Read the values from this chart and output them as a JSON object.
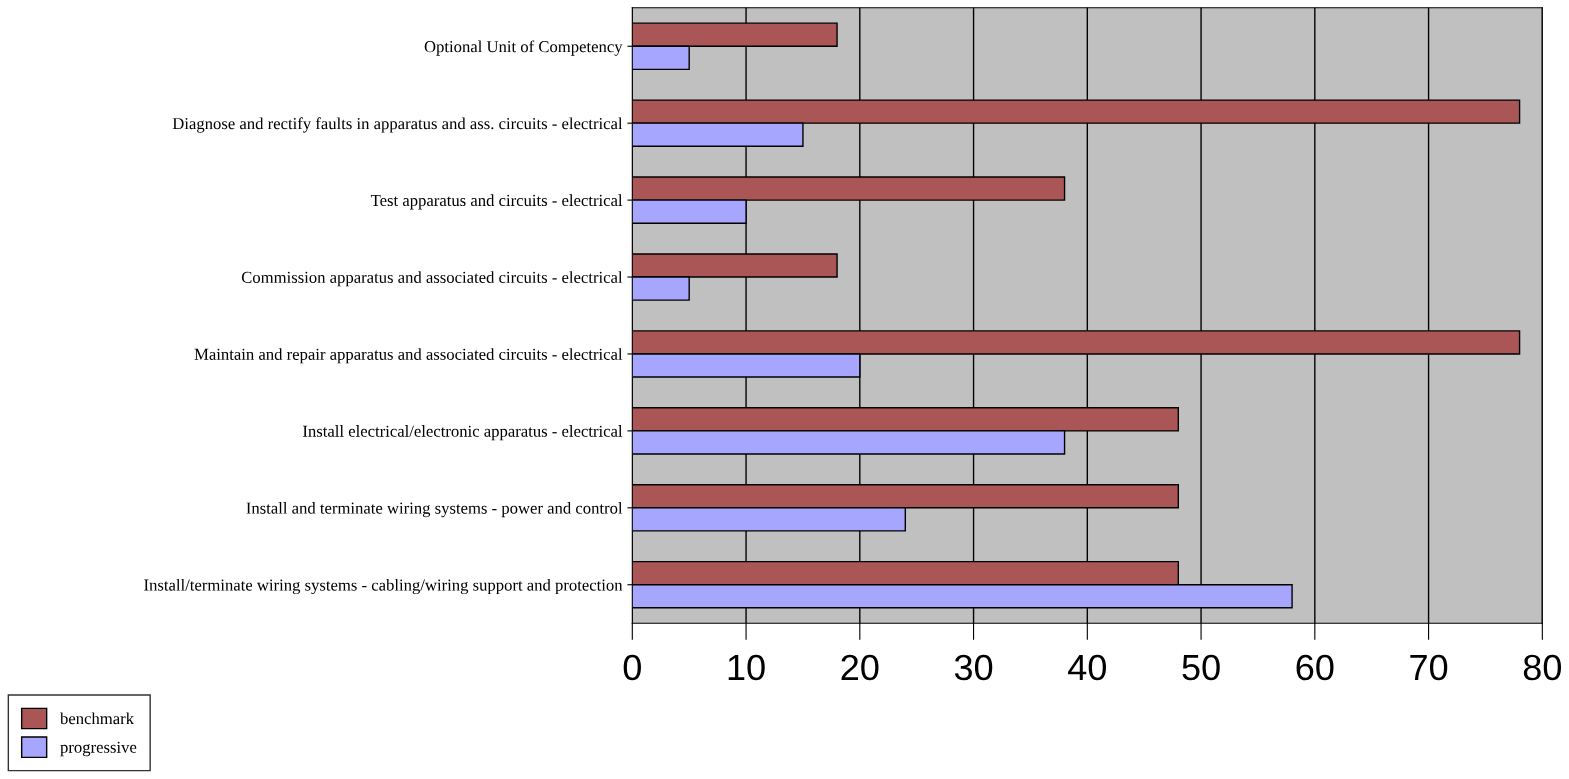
{
  "chart_data": {
    "type": "bar",
    "orientation": "horizontal",
    "categories": [
      "Optional Unit of Competency",
      "Diagnose and rectify faults in apparatus and ass. circuits - electrical",
      "Test apparatus and circuits - electrical",
      "Commission apparatus and associated circuits - electrical",
      "Maintain and repair apparatus and associated circuits - electrical",
      "Install electrical/electronic apparatus - electrical",
      "Install and terminate wiring systems - power and control",
      "Install/terminate wiring systems - cabling/wiring support and protection"
    ],
    "series": [
      {
        "name": "benchmark",
        "color": "#ab5656",
        "values": [
          18,
          78,
          38,
          18,
          78,
          48,
          48,
          48
        ]
      },
      {
        "name": "progressive",
        "color": "#a6a6ff",
        "values": [
          5,
          15,
          10,
          5,
          20,
          38,
          24,
          58
        ]
      }
    ],
    "xlim": [
      0,
      80
    ],
    "xticks": [
      0,
      10,
      20,
      30,
      40,
      50,
      60,
      70,
      80
    ],
    "grid": "x",
    "legend": "bottom left"
  }
}
